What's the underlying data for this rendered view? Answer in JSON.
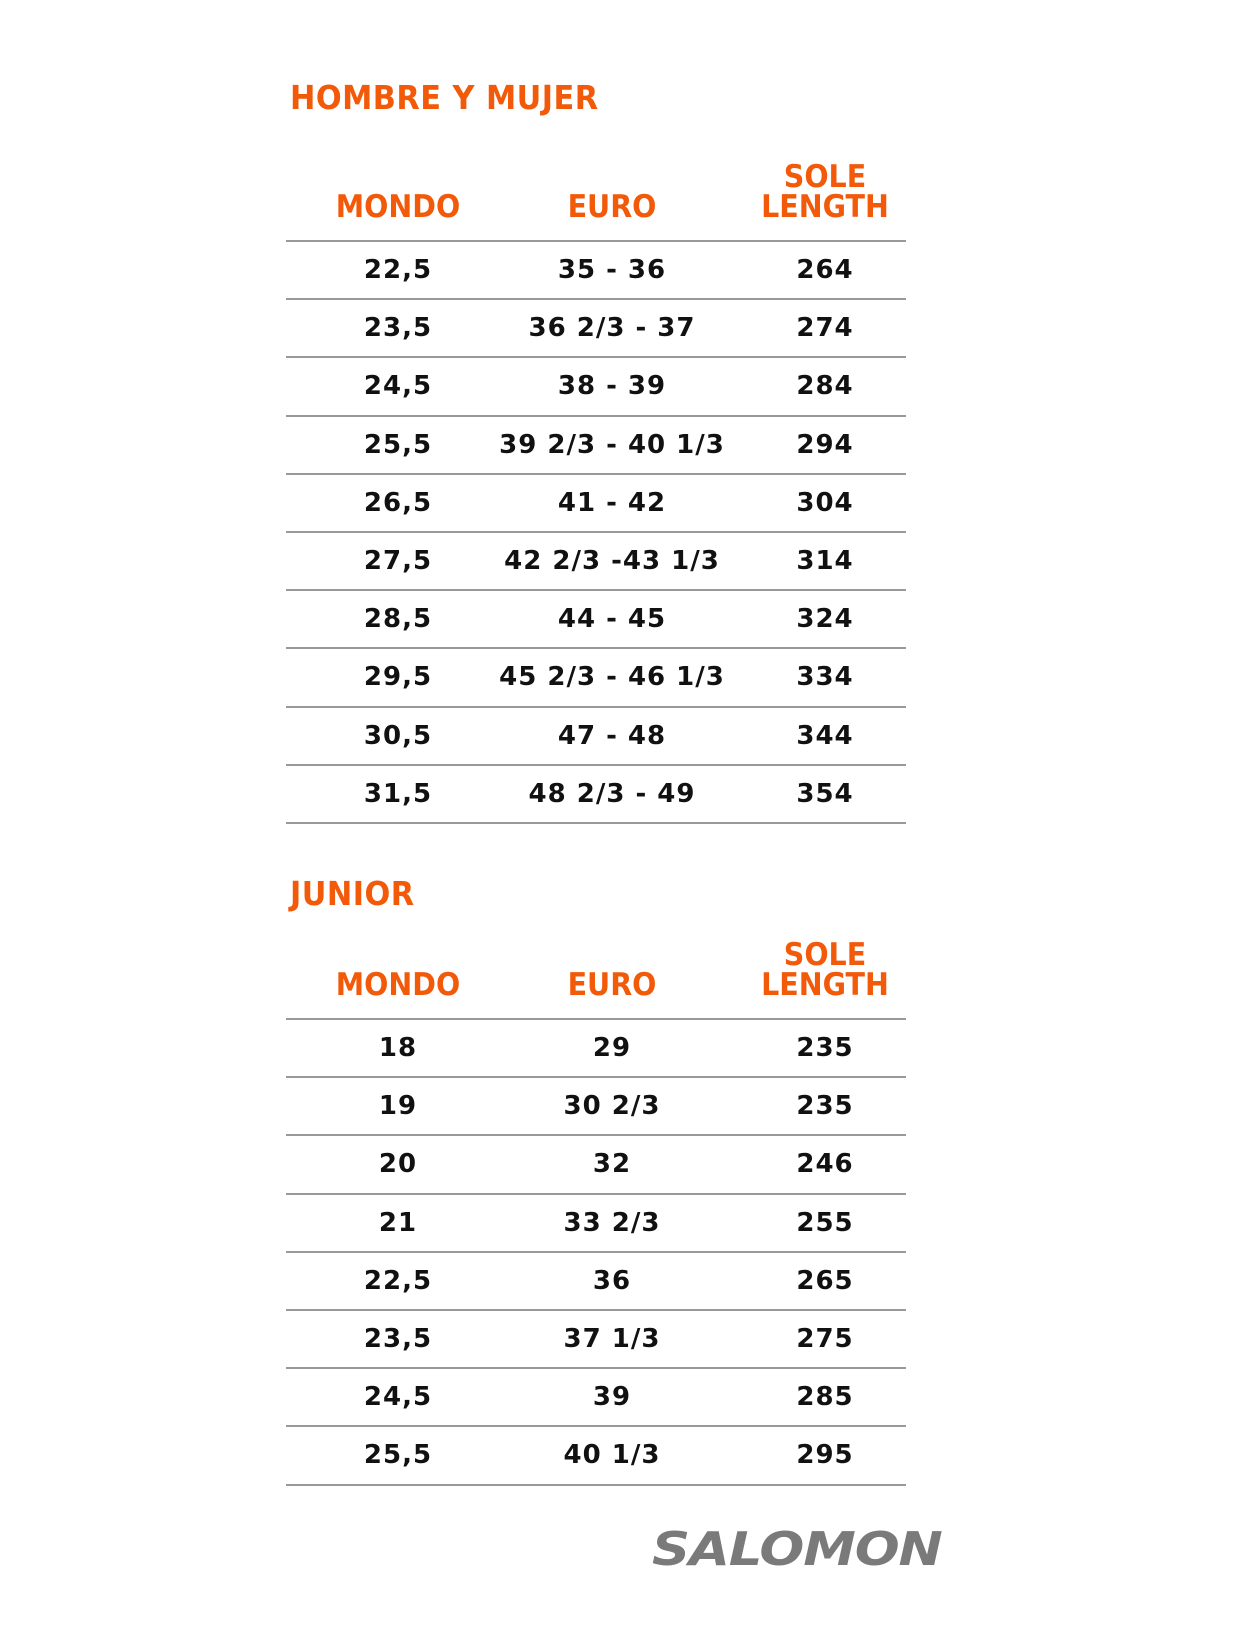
{
  "sections": [
    {
      "title": "HOMBRE Y MUJER",
      "headers": [
        "MONDO",
        "EURO",
        "SOLE LENGTH"
      ],
      "rows": [
        [
          "22,5",
          "35 - 36",
          "264"
        ],
        [
          "23,5",
          "36 2/3 - 37",
          "274"
        ],
        [
          "24,5",
          "38 - 39",
          "284"
        ],
        [
          "25,5",
          "39 2/3 - 40 1/3",
          "294"
        ],
        [
          "26,5",
          "41 - 42",
          "304"
        ],
        [
          "27,5",
          "42 2/3 -43 1/3",
          "314"
        ],
        [
          "28,5",
          "44 - 45",
          "324"
        ],
        [
          "29,5",
          "45 2/3 - 46 1/3",
          "334"
        ],
        [
          "30,5",
          "47 - 48",
          "344"
        ],
        [
          "31,5",
          "48 2/3 - 49",
          "354"
        ]
      ]
    },
    {
      "title": "JUNIOR",
      "headers": [
        "MONDO",
        "EURO",
        "SOLE LENGTH"
      ],
      "rows": [
        [
          "18",
          "29",
          "235"
        ],
        [
          "19",
          "30 2/3",
          "235"
        ],
        [
          "20",
          "32",
          "246"
        ],
        [
          "21",
          "33 2/3",
          "255"
        ],
        [
          "22,5",
          "36",
          "265"
        ],
        [
          "23,5",
          "37 1/3",
          "275"
        ],
        [
          "24,5",
          "39",
          "285"
        ],
        [
          "25,5",
          "40 1/3",
          "295"
        ]
      ]
    }
  ],
  "logo": "SALOMON",
  "colors": {
    "accent": "#f25a0a",
    "text": "#111111",
    "rule": "#999999",
    "logo": "#7a7a7a"
  }
}
